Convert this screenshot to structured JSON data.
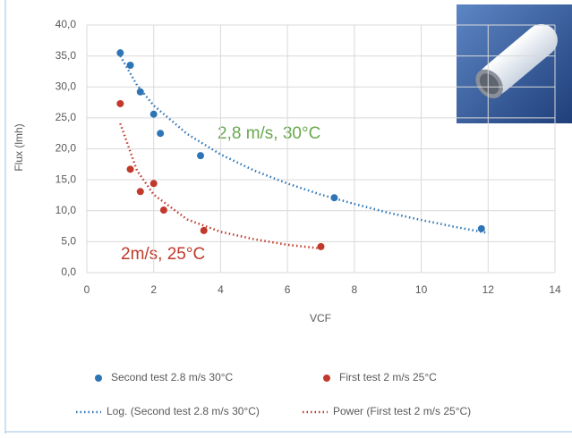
{
  "chart_data": {
    "type": "scatter",
    "x_label": "VCF",
    "y_label": "Flux (lmh)",
    "xlim": [
      0,
      14
    ],
    "xticks": [
      0,
      2,
      4,
      6,
      8,
      10,
      12,
      14
    ],
    "ylim": [
      0,
      40
    ],
    "yticks": [
      {
        "value": 0,
        "label": "0,0"
      },
      {
        "value": 5,
        "label": "5,0"
      },
      {
        "value": 10,
        "label": "10,0"
      },
      {
        "value": 15,
        "label": "15,0"
      },
      {
        "value": 20,
        "label": "20,0"
      },
      {
        "value": 25,
        "label": "25,0"
      },
      {
        "value": 30,
        "label": "30,0"
      },
      {
        "value": 35,
        "label": "35,0"
      },
      {
        "value": 40,
        "label": "40,0"
      }
    ],
    "grid": true,
    "series": [
      {
        "name": "Second test 2.8 m/s 30°C",
        "color": "#2e75b6",
        "style": "markers",
        "x": [
          1,
          1.3,
          1.6,
          2,
          2.2,
          3.4,
          7.4,
          11.8
        ],
        "values": [
          35.5,
          33.5,
          29.2,
          25.6,
          22.5,
          18.9,
          12.1,
          7.1
        ]
      },
      {
        "name": "First test 2 m/s 25°C",
        "color": "#c0392b",
        "style": "markers",
        "x": [
          1,
          1.3,
          1.6,
          2,
          2.3,
          3.5,
          7
        ],
        "values": [
          27.3,
          16.7,
          13.1,
          14.4,
          10.1,
          6.8,
          4.2
        ]
      },
      {
        "name": "Log. (Second test 2.8 m/s 30°C)",
        "color": "#2e75b6",
        "style": "dotted",
        "x": [
          1,
          1.5,
          2,
          3,
          4,
          5,
          6,
          7,
          8,
          9,
          10,
          11,
          12
        ],
        "values": [
          35,
          30.3,
          27,
          22.4,
          19.1,
          16.5,
          14.4,
          12.6,
          11.1,
          9.7,
          8.5,
          7.4,
          6.4
        ]
      },
      {
        "name": "Power (First test 2 m/s 25°C)",
        "color": "#c0392b",
        "style": "dotted",
        "x": [
          1,
          1.5,
          2,
          3,
          4,
          5,
          6,
          7
        ],
        "values": [
          24.1,
          16.5,
          12.6,
          8.6,
          6.6,
          5.4,
          4.5,
          3.9
        ]
      }
    ],
    "annotations": [
      {
        "text": "2,8 m/s, 30°C",
        "color": "#6aa84f"
      },
      {
        "text": "2m/s, 25°C",
        "color": "#c0392b"
      }
    ]
  }
}
